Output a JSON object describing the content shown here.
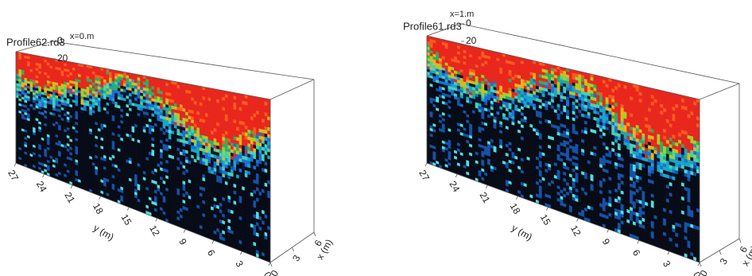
{
  "chart_data": [
    {
      "type": "radargram3d",
      "title": "Profile62.rd3",
      "subtitle": "x=0.m",
      "xlabel": "x (m)",
      "ylabel": "y (m)",
      "xlim": [
        0,
        6
      ],
      "xticks": [
        0,
        3,
        6
      ],
      "ylim": [
        0,
        27
      ],
      "yticks": [
        0,
        3,
        6,
        9,
        12,
        15,
        18,
        21,
        24,
        27
      ],
      "zlim": [
        0,
        20
      ],
      "zticks": [
        0,
        20
      ]
    },
    {
      "type": "radargram3d",
      "title": "Profile61.rd3",
      "subtitle": "x=1.m",
      "xlabel": "x (m)",
      "ylabel": "y (m)",
      "xlim": [
        0,
        6
      ],
      "xticks": [
        0,
        3,
        6
      ],
      "ylim": [
        0,
        27
      ],
      "yticks": [
        0,
        3,
        6,
        9,
        12,
        15,
        18,
        21,
        24,
        27
      ],
      "zlim": [
        0,
        20
      ],
      "zticks": [
        0,
        20
      ]
    }
  ]
}
